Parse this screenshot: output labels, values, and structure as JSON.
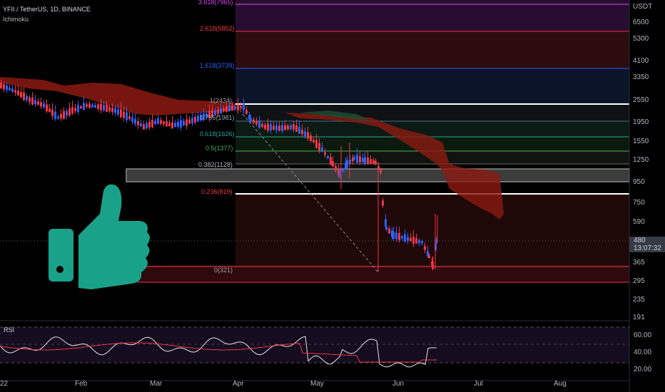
{
  "header": {
    "symbol_line": "YFII / TetherUS, 1D, BINANCE",
    "indicator": "Ichimoku"
  },
  "price_axis": {
    "currency": "USDT",
    "ticks": [
      "6500",
      "5300",
      "4100",
      "3350",
      "2550",
      "1950",
      "1550",
      "1250",
      "950",
      "750",
      "590",
      "365",
      "295",
      "235",
      "191"
    ],
    "current_price": "480",
    "countdown": "13:07:32"
  },
  "time_axis": {
    "labels": [
      "22",
      "Feb",
      "Mar",
      "Apr",
      "May",
      "Jun",
      "Jul",
      "Aug"
    ]
  },
  "fib_levels": [
    {
      "label": "3.618(7965)",
      "color": "#e040fb"
    },
    {
      "label": "2.618(5852)",
      "color": "#f23645"
    },
    {
      "label": "1.618(3739)",
      "color": "#2962ff"
    },
    {
      "label": "1(2434)",
      "color": "#9e9e9e"
    },
    {
      "label": "0.786(1981)",
      "color": "#90a4ae"
    },
    {
      "label": "0.618(1626)",
      "color": "#26a69a"
    },
    {
      "label": "0.5(1377)",
      "color": "#4caf50"
    },
    {
      "label": "0.382(1128)",
      "color": "#b2b5be"
    },
    {
      "label": "0.236(819)",
      "color": "#f23645"
    },
    {
      "label": "0(321)",
      "color": "#9e9e9e"
    }
  ],
  "rsi": {
    "label": "RSI",
    "ticks": [
      "60.00",
      "40.00",
      "20.00"
    ]
  },
  "colors": {
    "thumb": "#1aa289",
    "bull": "#2962ff",
    "bear": "#f23645",
    "cloud": "#8b1a10"
  },
  "icons": [
    "thumbs-up-icon"
  ]
}
